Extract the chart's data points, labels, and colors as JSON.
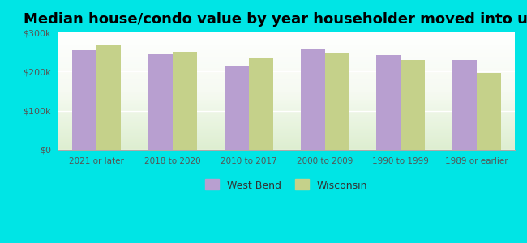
{
  "title": "Median house/condo value by year householder moved into unit",
  "categories": [
    "2021 or later",
    "2018 to 2020",
    "2010 to 2017",
    "2000 to 2009",
    "1990 to 1999",
    "1989 or earlier"
  ],
  "west_bend": [
    255000,
    245000,
    215000,
    257000,
    242000,
    230000
  ],
  "wisconsin": [
    268000,
    250000,
    237000,
    247000,
    230000,
    196000
  ],
  "west_bend_color": "#b89fd0",
  "wisconsin_color": "#c5d18a",
  "background_color": "#00e5e5",
  "ylim": [
    0,
    300000
  ],
  "yticks": [
    0,
    100000,
    200000,
    300000
  ],
  "bar_width": 0.32,
  "legend_labels": [
    "West Bend",
    "Wisconsin"
  ],
  "title_fontsize": 13
}
